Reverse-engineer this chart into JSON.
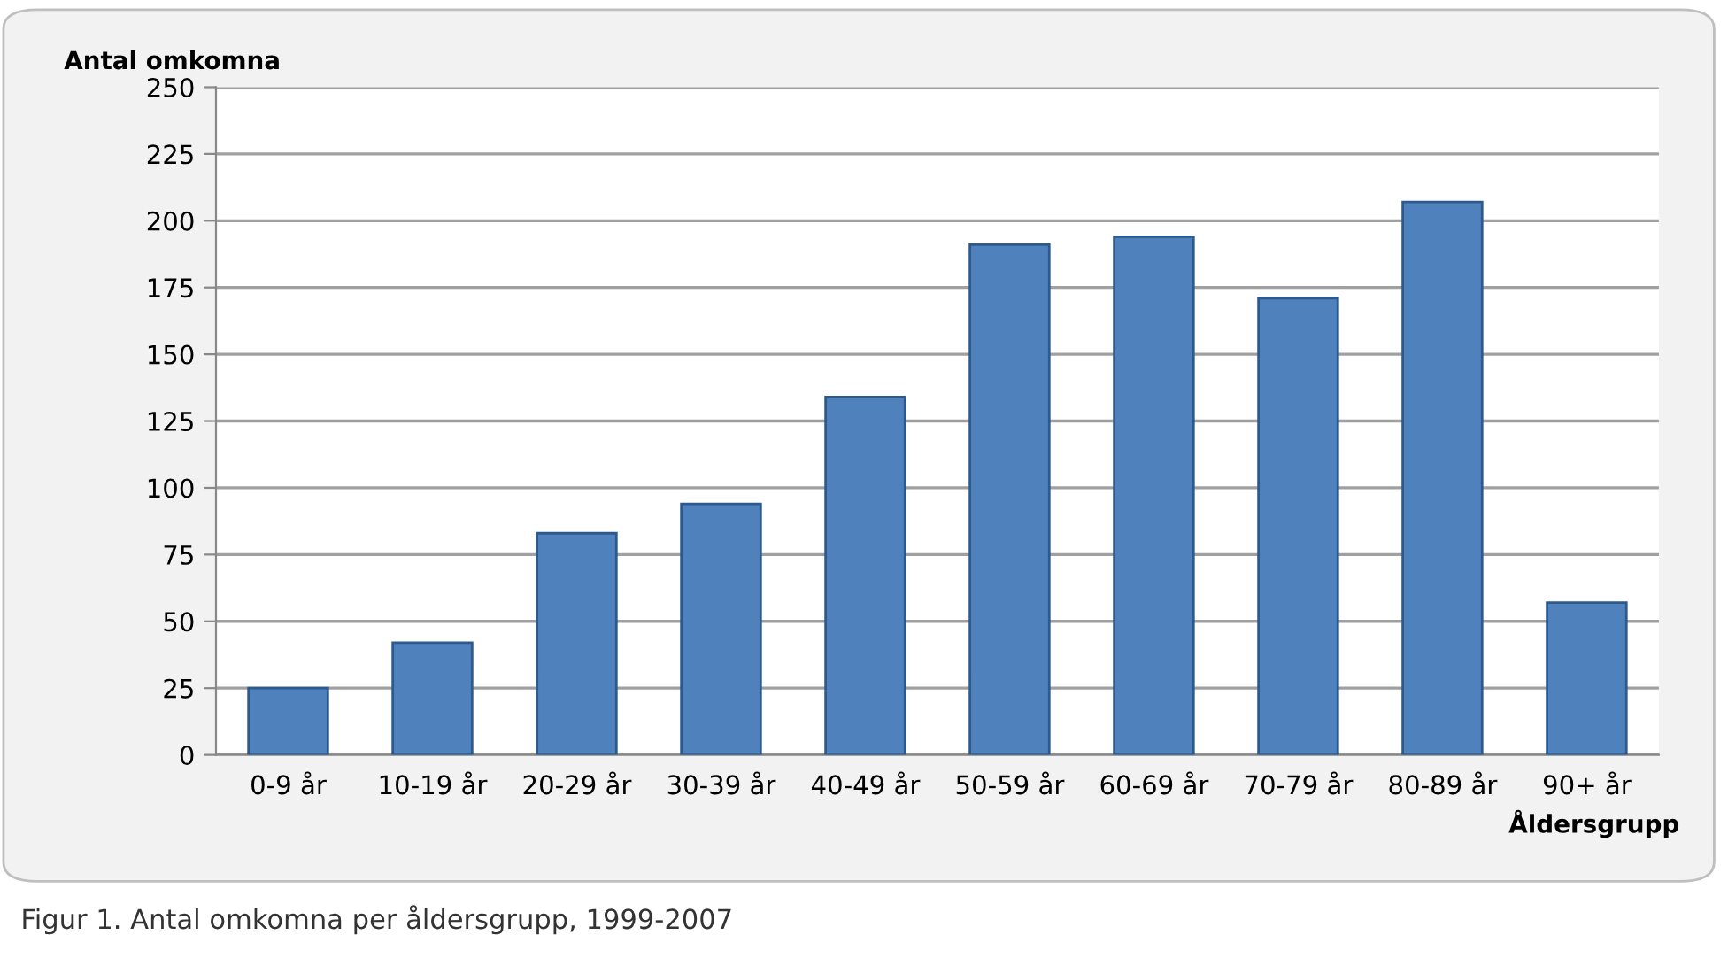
{
  "chart_data": {
    "type": "bar",
    "ylabel": "Antal omkomna",
    "xlabel": "Åldersgrupp",
    "categories": [
      "0-9 år",
      "10-19 år",
      "20-29 år",
      "30-39 år",
      "40-49 år",
      "50-59 år",
      "60-69 år",
      "70-79 år",
      "80-89 år",
      "90+ år"
    ],
    "values": [
      25,
      42,
      83,
      94,
      134,
      191,
      194,
      171,
      207,
      57
    ],
    "color": "#4f81bd",
    "ylim": [
      0,
      250
    ],
    "yticks": [
      0,
      25,
      50,
      75,
      100,
      125,
      150,
      175,
      200,
      225,
      250
    ],
    "grid": "y",
    "annotations": [
      "Figur 1. Antal omkomna per åldersgrupp, 1999-2007"
    ]
  }
}
